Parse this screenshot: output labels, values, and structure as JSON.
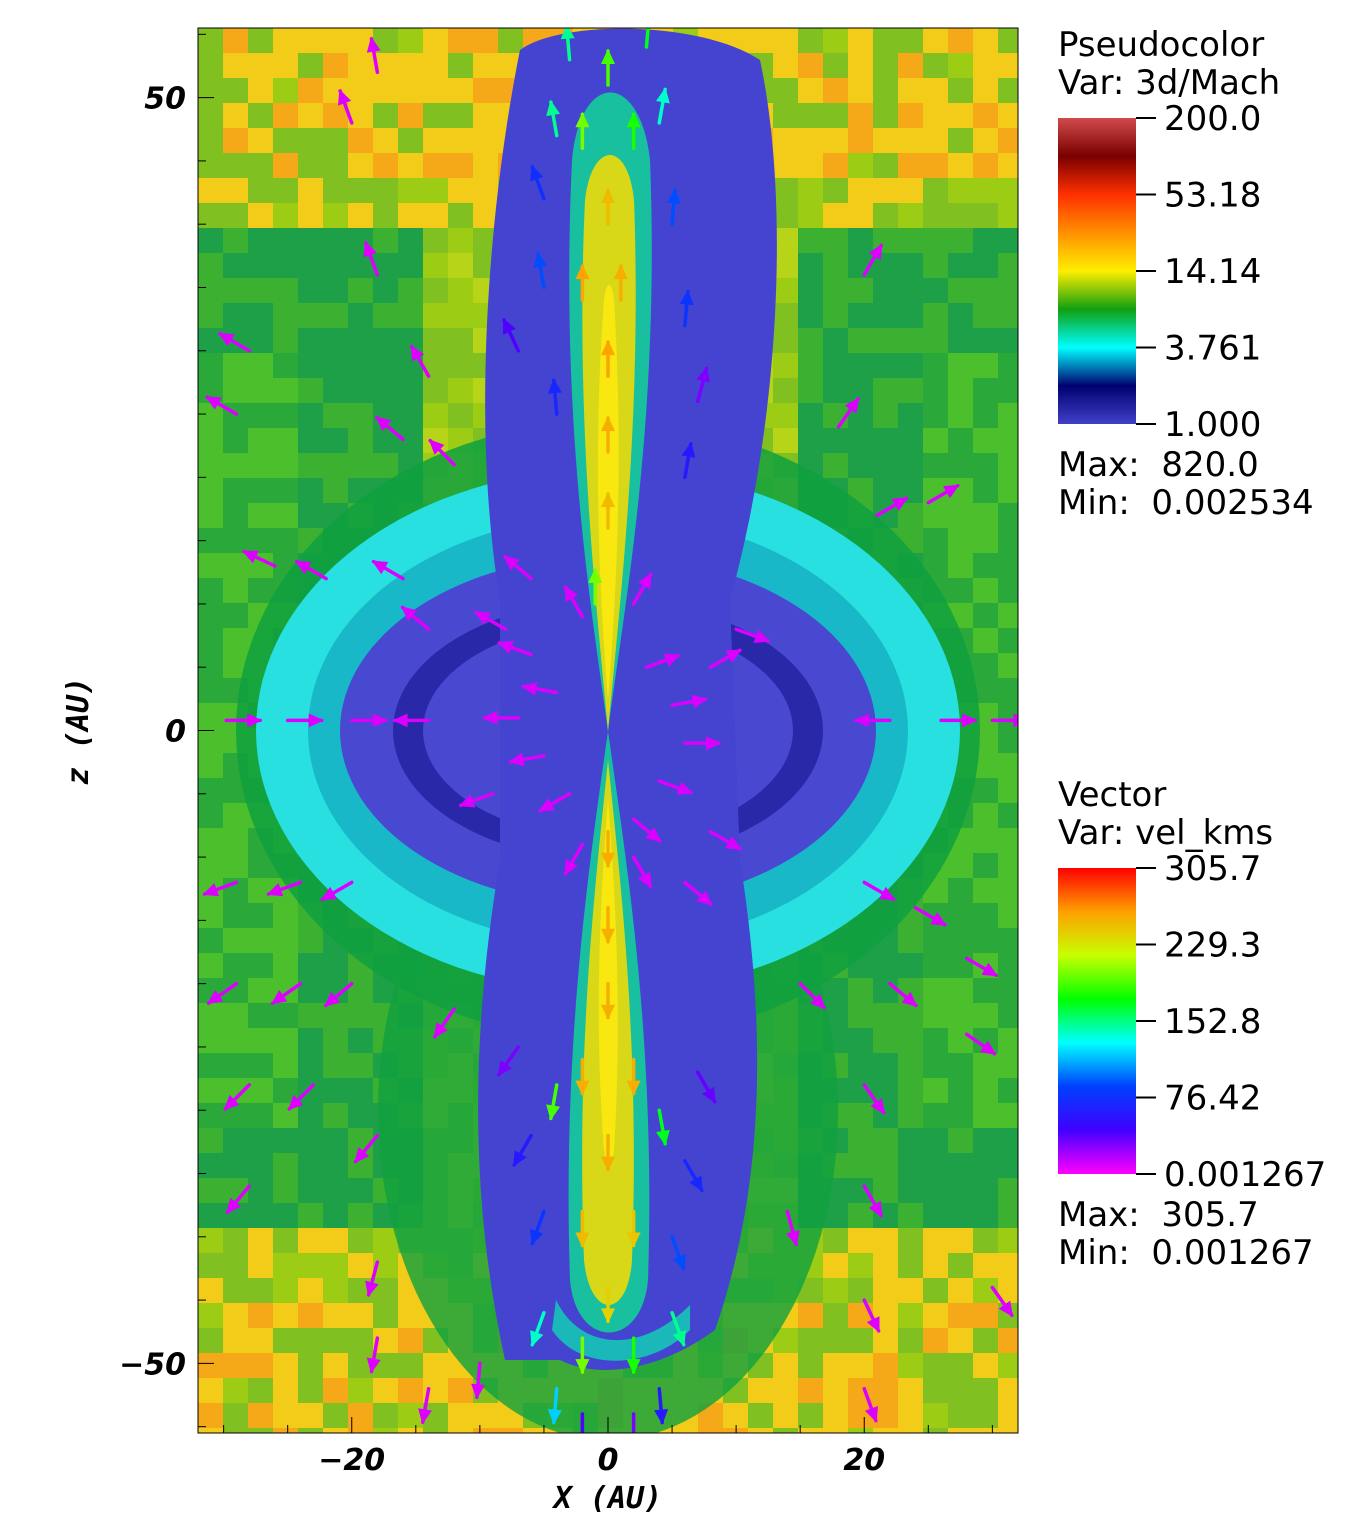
{
  "chart_data": {
    "type": "heatmap",
    "xlabel": "X  (AU)",
    "ylabel": "z  (AU)",
    "xlim": [
      -32,
      32
    ],
    "ylim": [
      -55.5,
      55.5
    ],
    "x_ticks": [
      {
        "value": -20,
        "label": "−20"
      },
      {
        "value": 0,
        "label": "0"
      },
      {
        "value": 20,
        "label": "20"
      }
    ],
    "y_ticks": [
      {
        "value": 50,
        "label": "50"
      },
      {
        "value": 0,
        "label": "0"
      },
      {
        "value": -50,
        "label": "−50"
      }
    ],
    "pseudocolor": {
      "title": "Pseudocolor",
      "var_label": "Var: 3d/Mach",
      "scale": "log",
      "tick_labels": [
        "200.0",
        "53.18",
        "14.14",
        "3.761",
        "1.000"
      ],
      "max_label": "Max:  820.0",
      "min_label": "Min:  0.002534",
      "colors": [
        "#d04a4a",
        "#7a0000",
        "#ff3000",
        "#ff9000",
        "#ffee00",
        "#10a010",
        "#00ffff",
        "#000070",
        "#4040c8"
      ]
    },
    "vector": {
      "title": "Vector",
      "var_label": "Var: vel_kms",
      "tick_labels": [
        "305.7",
        "229.3",
        "152.8",
        "76.42",
        "0.001267"
      ],
      "max_label": "Max:  305.7",
      "min_label": "Min:  0.001267",
      "colors": [
        "#ff0000",
        "#ffa000",
        "#c8ff00",
        "#00ff00",
        "#00ffff",
        "#0040ff",
        "#4000ff",
        "#ff00ff"
      ]
    },
    "region_colors": {
      "outer": "#9ccc14",
      "outer_hot": "#f2cc18",
      "shell": "#0fa040",
      "cyan": "#28e0e0",
      "cavity": "#4848d0",
      "jet_core": "#e6e010",
      "jet_edge": "#18c0a0"
    },
    "vectors": [
      {
        "x": -29.8,
        "y": 0.8,
        "angle": 0,
        "speed": 8
      },
      {
        "x": -25,
        "y": 0.8,
        "angle": 0,
        "speed": 8
      },
      {
        "x": -20,
        "y": 0.8,
        "angle": 0,
        "speed": 8
      },
      {
        "x": -14,
        "y": 0.8,
        "angle": 180,
        "speed": 8
      },
      {
        "x": 22,
        "y": 0.8,
        "angle": 180,
        "speed": 8
      },
      {
        "x": 26,
        "y": 0.8,
        "angle": 0,
        "speed": 8
      },
      {
        "x": 30,
        "y": 0.8,
        "angle": 0,
        "speed": 8
      },
      {
        "x": -28,
        "y": 30,
        "angle": 150,
        "speed": 8
      },
      {
        "x": -29,
        "y": 25,
        "angle": 150,
        "speed": 8
      },
      {
        "x": -26,
        "y": 13,
        "angle": 155,
        "speed": 8
      },
      {
        "x": -22,
        "y": 12,
        "angle": 150,
        "speed": 8
      },
      {
        "x": -16,
        "y": 12,
        "angle": 150,
        "speed": 8
      },
      {
        "x": -14,
        "y": 8,
        "angle": 140,
        "speed": 8
      },
      {
        "x": -16,
        "y": 23,
        "angle": 140,
        "speed": 8
      },
      {
        "x": -12,
        "y": 21,
        "angle": 135,
        "speed": 8
      },
      {
        "x": -18,
        "y": 36,
        "angle": 110,
        "speed": 8
      },
      {
        "x": -14,
        "y": 28,
        "angle": 120,
        "speed": 8
      },
      {
        "x": -18,
        "y": 52,
        "angle": 100,
        "speed": 8
      },
      {
        "x": -20,
        "y": 48,
        "angle": 110,
        "speed": 8
      },
      {
        "x": 20,
        "y": 36,
        "angle": 60,
        "speed": 8
      },
      {
        "x": 18,
        "y": 24,
        "angle": 55,
        "speed": 8
      },
      {
        "x": 21,
        "y": 17,
        "angle": 30,
        "speed": 8
      },
      {
        "x": 25,
        "y": 18,
        "angle": 30,
        "speed": 8
      },
      {
        "x": 10,
        "y": 8,
        "angle": -20,
        "speed": 8
      },
      {
        "x": -29,
        "y": -12,
        "angle": 200,
        "speed": 8
      },
      {
        "x": -24,
        "y": -12,
        "angle": 200,
        "speed": 8
      },
      {
        "x": -20,
        "y": -12,
        "angle": 210,
        "speed": 8
      },
      {
        "x": -29,
        "y": -20,
        "angle": 215,
        "speed": 8
      },
      {
        "x": -24,
        "y": -20,
        "angle": 215,
        "speed": 8
      },
      {
        "x": -20,
        "y": -20,
        "angle": 220,
        "speed": 8
      },
      {
        "x": -28,
        "y": -28,
        "angle": 225,
        "speed": 8
      },
      {
        "x": -23,
        "y": -28,
        "angle": 225,
        "speed": 8
      },
      {
        "x": -28,
        "y": -36,
        "angle": 230,
        "speed": 8
      },
      {
        "x": -18,
        "y": -32,
        "angle": 230,
        "speed": 8
      },
      {
        "x": -12,
        "y": -22,
        "angle": 235,
        "speed": 8
      },
      {
        "x": 20,
        "y": -12,
        "angle": -30,
        "speed": 8
      },
      {
        "x": 24,
        "y": -14,
        "angle": -30,
        "speed": 8
      },
      {
        "x": 28,
        "y": -18,
        "angle": -30,
        "speed": 8
      },
      {
        "x": 22,
        "y": -20,
        "angle": -40,
        "speed": 8
      },
      {
        "x": 28,
        "y": -24,
        "angle": -35,
        "speed": 8
      },
      {
        "x": 20,
        "y": -28,
        "angle": -55,
        "speed": 8
      },
      {
        "x": 15,
        "y": -20,
        "angle": -45,
        "speed": 8
      },
      {
        "x": 20,
        "y": -36,
        "angle": -60,
        "speed": 8
      },
      {
        "x": 14,
        "y": -38,
        "angle": -75,
        "speed": 8
      },
      {
        "x": 20,
        "y": -45,
        "angle": -65,
        "speed": 8
      },
      {
        "x": 30,
        "y": -44,
        "angle": -55,
        "speed": 8
      },
      {
        "x": 20,
        "y": -52,
        "angle": -70,
        "speed": 8
      },
      {
        "x": -18,
        "y": -48,
        "angle": 260,
        "speed": 8
      },
      {
        "x": -18,
        "y": -42,
        "angle": 255,
        "speed": 8
      },
      {
        "x": -14,
        "y": -52,
        "angle": 260,
        "speed": 8
      },
      {
        "x": -10,
        "y": -50,
        "angle": 265,
        "speed": 8
      },
      {
        "x": -6,
        "y": 6,
        "angle": 160,
        "speed": 8
      },
      {
        "x": -4,
        "y": 3,
        "angle": 170,
        "speed": 8
      },
      {
        "x": -7,
        "y": 1,
        "angle": 180,
        "speed": 8
      },
      {
        "x": -5,
        "y": -2,
        "angle": 190,
        "speed": 8
      },
      {
        "x": -3,
        "y": -5,
        "angle": 210,
        "speed": 8
      },
      {
        "x": 3,
        "y": 5,
        "angle": 20,
        "speed": 8
      },
      {
        "x": 5,
        "y": 2,
        "angle": 10,
        "speed": 8
      },
      {
        "x": 6,
        "y": -1,
        "angle": 0,
        "speed": 8
      },
      {
        "x": 4,
        "y": -4,
        "angle": -20,
        "speed": 8
      },
      {
        "x": 2,
        "y": -7,
        "angle": -40,
        "speed": 8
      },
      {
        "x": -2,
        "y": 9,
        "angle": 120,
        "speed": 8
      },
      {
        "x": 2,
        "y": 10,
        "angle": 60,
        "speed": 8
      },
      {
        "x": -2,
        "y": -9,
        "angle": 240,
        "speed": 8
      },
      {
        "x": 2,
        "y": -10,
        "angle": 300,
        "speed": 8
      },
      {
        "x": -8,
        "y": 8,
        "angle": 150,
        "speed": 8
      },
      {
        "x": 8,
        "y": -8,
        "angle": -30,
        "speed": 8
      },
      {
        "x": -9,
        "y": -5,
        "angle": 200,
        "speed": 8
      },
      {
        "x": 8,
        "y": 5,
        "angle": 30,
        "speed": 8
      },
      {
        "x": -6,
        "y": 12,
        "angle": 140,
        "speed": 8
      },
      {
        "x": 6,
        "y": -12,
        "angle": -40,
        "speed": 8
      },
      {
        "x": -1,
        "y": 10,
        "angle": 90,
        "speed": 200
      },
      {
        "x": 0,
        "y": 16,
        "angle": 90,
        "speed": 250
      },
      {
        "x": 0,
        "y": 22,
        "angle": 90,
        "speed": 255
      },
      {
        "x": 0,
        "y": 28,
        "angle": 90,
        "speed": 260
      },
      {
        "x": -2,
        "y": 34,
        "angle": 90,
        "speed": 260
      },
      {
        "x": 1,
        "y": 34,
        "angle": 90,
        "speed": 255
      },
      {
        "x": 0,
        "y": 40,
        "angle": 90,
        "speed": 250
      },
      {
        "x": -2,
        "y": 46,
        "angle": 90,
        "speed": 200
      },
      {
        "x": 2,
        "y": 46,
        "angle": 90,
        "speed": 180
      },
      {
        "x": 0,
        "y": 51,
        "angle": 90,
        "speed": 190
      },
      {
        "x": -4,
        "y": 47,
        "angle": 100,
        "speed": 150
      },
      {
        "x": 4,
        "y": 48,
        "angle": 80,
        "speed": 140
      },
      {
        "x": -5,
        "y": 35,
        "angle": 100,
        "speed": 90
      },
      {
        "x": 6,
        "y": 32,
        "angle": 85,
        "speed": 80
      },
      {
        "x": -4,
        "y": 25,
        "angle": 95,
        "speed": 70
      },
      {
        "x": 6,
        "y": 20,
        "angle": 80,
        "speed": 60
      },
      {
        "x": -5,
        "y": 42,
        "angle": 110,
        "speed": 75
      },
      {
        "x": 5,
        "y": 40,
        "angle": 85,
        "speed": 90
      },
      {
        "x": -3,
        "y": 53,
        "angle": 95,
        "speed": 150
      },
      {
        "x": 3,
        "y": 54,
        "angle": 85,
        "speed": 170
      },
      {
        "x": 0,
        "y": -8,
        "angle": 270,
        "speed": 255
      },
      {
        "x": 0,
        "y": -14,
        "angle": 270,
        "speed": 255
      },
      {
        "x": 0,
        "y": -20,
        "angle": 270,
        "speed": 255
      },
      {
        "x": -2,
        "y": -26,
        "angle": 270,
        "speed": 255
      },
      {
        "x": 2,
        "y": -26,
        "angle": 270,
        "speed": 255
      },
      {
        "x": 0,
        "y": -32,
        "angle": 270,
        "speed": 255
      },
      {
        "x": -2,
        "y": -38,
        "angle": 270,
        "speed": 250
      },
      {
        "x": 2,
        "y": -38,
        "angle": 270,
        "speed": 245
      },
      {
        "x": 0,
        "y": -44,
        "angle": 270,
        "speed": 240
      },
      {
        "x": -2,
        "y": -48,
        "angle": 270,
        "speed": 200
      },
      {
        "x": 2,
        "y": -48,
        "angle": 270,
        "speed": 180
      },
      {
        "x": -4,
        "y": -28,
        "angle": 260,
        "speed": 190
      },
      {
        "x": 4,
        "y": -30,
        "angle": 280,
        "speed": 170
      },
      {
        "x": -5,
        "y": -38,
        "angle": 250,
        "speed": 80
      },
      {
        "x": 5,
        "y": -40,
        "angle": 290,
        "speed": 90
      },
      {
        "x": -6,
        "y": -32,
        "angle": 240,
        "speed": 60
      },
      {
        "x": 6,
        "y": -34,
        "angle": 300,
        "speed": 70
      },
      {
        "x": -5,
        "y": -46,
        "angle": 250,
        "speed": 140
      },
      {
        "x": 5,
        "y": -46,
        "angle": 290,
        "speed": 150
      },
      {
        "x": -4,
        "y": -52,
        "angle": 265,
        "speed": 120
      },
      {
        "x": 4,
        "y": -52,
        "angle": 275,
        "speed": 60
      },
      {
        "x": -2,
        "y": -54,
        "angle": 270,
        "speed": 40
      },
      {
        "x": 2,
        "y": -54,
        "angle": 270,
        "speed": 30
      },
      {
        "x": -7,
        "y": 30,
        "angle": 115,
        "speed": 40
      },
      {
        "x": 7,
        "y": 26,
        "angle": 75,
        "speed": 30
      },
      {
        "x": -7,
        "y": -25,
        "angle": 235,
        "speed": 30
      },
      {
        "x": 7,
        "y": -27,
        "angle": 300,
        "speed": 35
      }
    ]
  }
}
